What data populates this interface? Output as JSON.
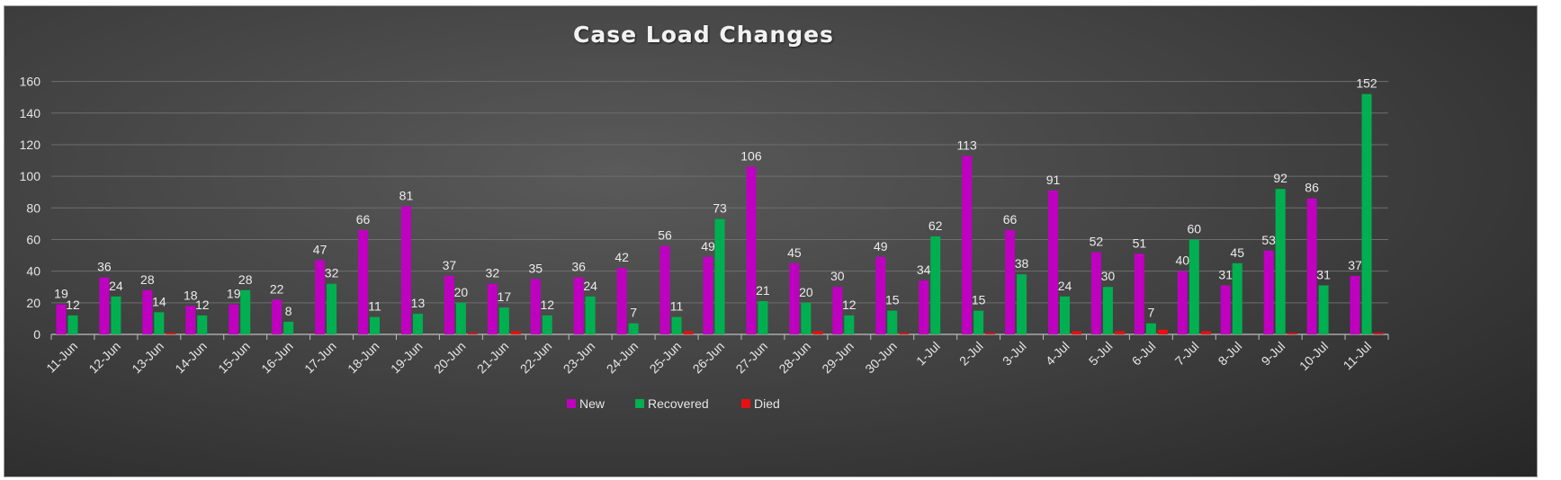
{
  "chart_data": {
    "type": "bar",
    "title": "Case Load Changes",
    "xlabel": "",
    "ylabel": "",
    "ylim": [
      0,
      170
    ],
    "yticks": [
      0,
      20,
      40,
      60,
      80,
      100,
      120,
      140,
      160
    ],
    "grid": true,
    "legend_position": "bottom",
    "categories": [
      "11-Jun",
      "12-Jun",
      "13-Jun",
      "14-Jun",
      "15-Jun",
      "16-Jun",
      "17-Jun",
      "18-Jun",
      "19-Jun",
      "20-Jun",
      "21-Jun",
      "22-Jun",
      "23-Jun",
      "24-Jun",
      "25-Jun",
      "26-Jun",
      "27-Jun",
      "28-Jun",
      "29-Jun",
      "30-Jun",
      "1-Jul",
      "2-Jul",
      "3-Jul",
      "4-Jul",
      "5-Jul",
      "6-Jul",
      "7-Jul",
      "8-Jul",
      "9-Jul",
      "10-Jul",
      "11-Jul"
    ],
    "series": [
      {
        "name": "New",
        "color": "#c000c0",
        "show_labels": true,
        "values": [
          19,
          36,
          28,
          18,
          19,
          22,
          47,
          66,
          81,
          37,
          32,
          35,
          36,
          42,
          56,
          49,
          106,
          45,
          30,
          49,
          34,
          113,
          66,
          91,
          52,
          51,
          40,
          31,
          53,
          86,
          37
        ]
      },
      {
        "name": "Recovered",
        "color": "#00b050",
        "show_labels": true,
        "values": [
          12,
          24,
          14,
          12,
          28,
          8,
          32,
          11,
          13,
          20,
          17,
          12,
          24,
          7,
          11,
          73,
          21,
          20,
          12,
          15,
          62,
          15,
          38,
          24,
          30,
          7,
          60,
          45,
          92,
          31,
          152
        ]
      },
      {
        "name": "Died",
        "color": "#e81010",
        "show_labels": false,
        "values": [
          0,
          0,
          1,
          0,
          0,
          0,
          0,
          0,
          0,
          1,
          2,
          0,
          0,
          0,
          2,
          0,
          0,
          2,
          0,
          1,
          0,
          1,
          0,
          2,
          2,
          3,
          2,
          0,
          1,
          0,
          1
        ]
      }
    ]
  }
}
